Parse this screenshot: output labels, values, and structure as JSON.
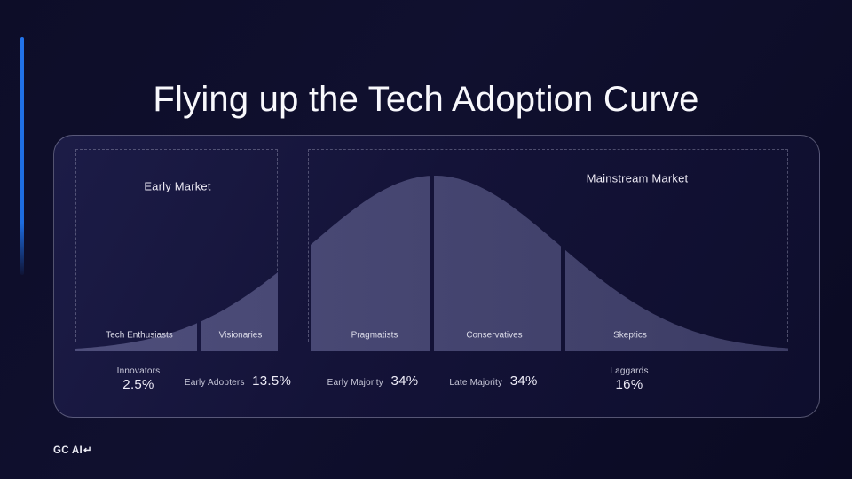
{
  "slide": {
    "title": "Flying up the Tech Adoption Curve",
    "logo_text": "GC AI",
    "logo_glyph": "↵"
  },
  "chart": {
    "markets": [
      {
        "label": "Early Market"
      },
      {
        "label": "Mainstream Market"
      }
    ],
    "segments": [
      {
        "name": "Tech Enthusiasts",
        "group": "Innovators",
        "percent": "2.5%"
      },
      {
        "name": "Visionaries",
        "group": "Early Adopters",
        "percent": "13.5%"
      },
      {
        "name": "Pragmatists",
        "group": "Early Majority",
        "percent": "34%"
      },
      {
        "name": "Conservatives",
        "group": "Late Majority",
        "percent": "34%"
      },
      {
        "name": "Skeptics",
        "group": "Laggards",
        "percent": "16%"
      }
    ]
  },
  "chart_data": {
    "type": "area",
    "curve": "bell",
    "title": "Flying up the Tech Adoption Curve",
    "categories": [
      "Innovators",
      "Early Adopters",
      "Early Majority",
      "Late Majority",
      "Laggards"
    ],
    "values": [
      2.5,
      13.5,
      34,
      34,
      16
    ],
    "segment_labels": [
      "Tech Enthusiasts",
      "Visionaries",
      "Pragmatists",
      "Conservatives",
      "Skeptics"
    ],
    "groups": [
      {
        "label": "Early Market",
        "categories": [
          "Innovators",
          "Early Adopters"
        ]
      },
      {
        "label": "Mainstream Market",
        "categories": [
          "Early Majority",
          "Late Majority",
          "Laggards"
        ]
      }
    ],
    "legend": "none",
    "axes": "none",
    "colors": {
      "curve_fill": "#45456e",
      "background": "#0d0d28",
      "accent": "#1d6ce0"
    }
  }
}
